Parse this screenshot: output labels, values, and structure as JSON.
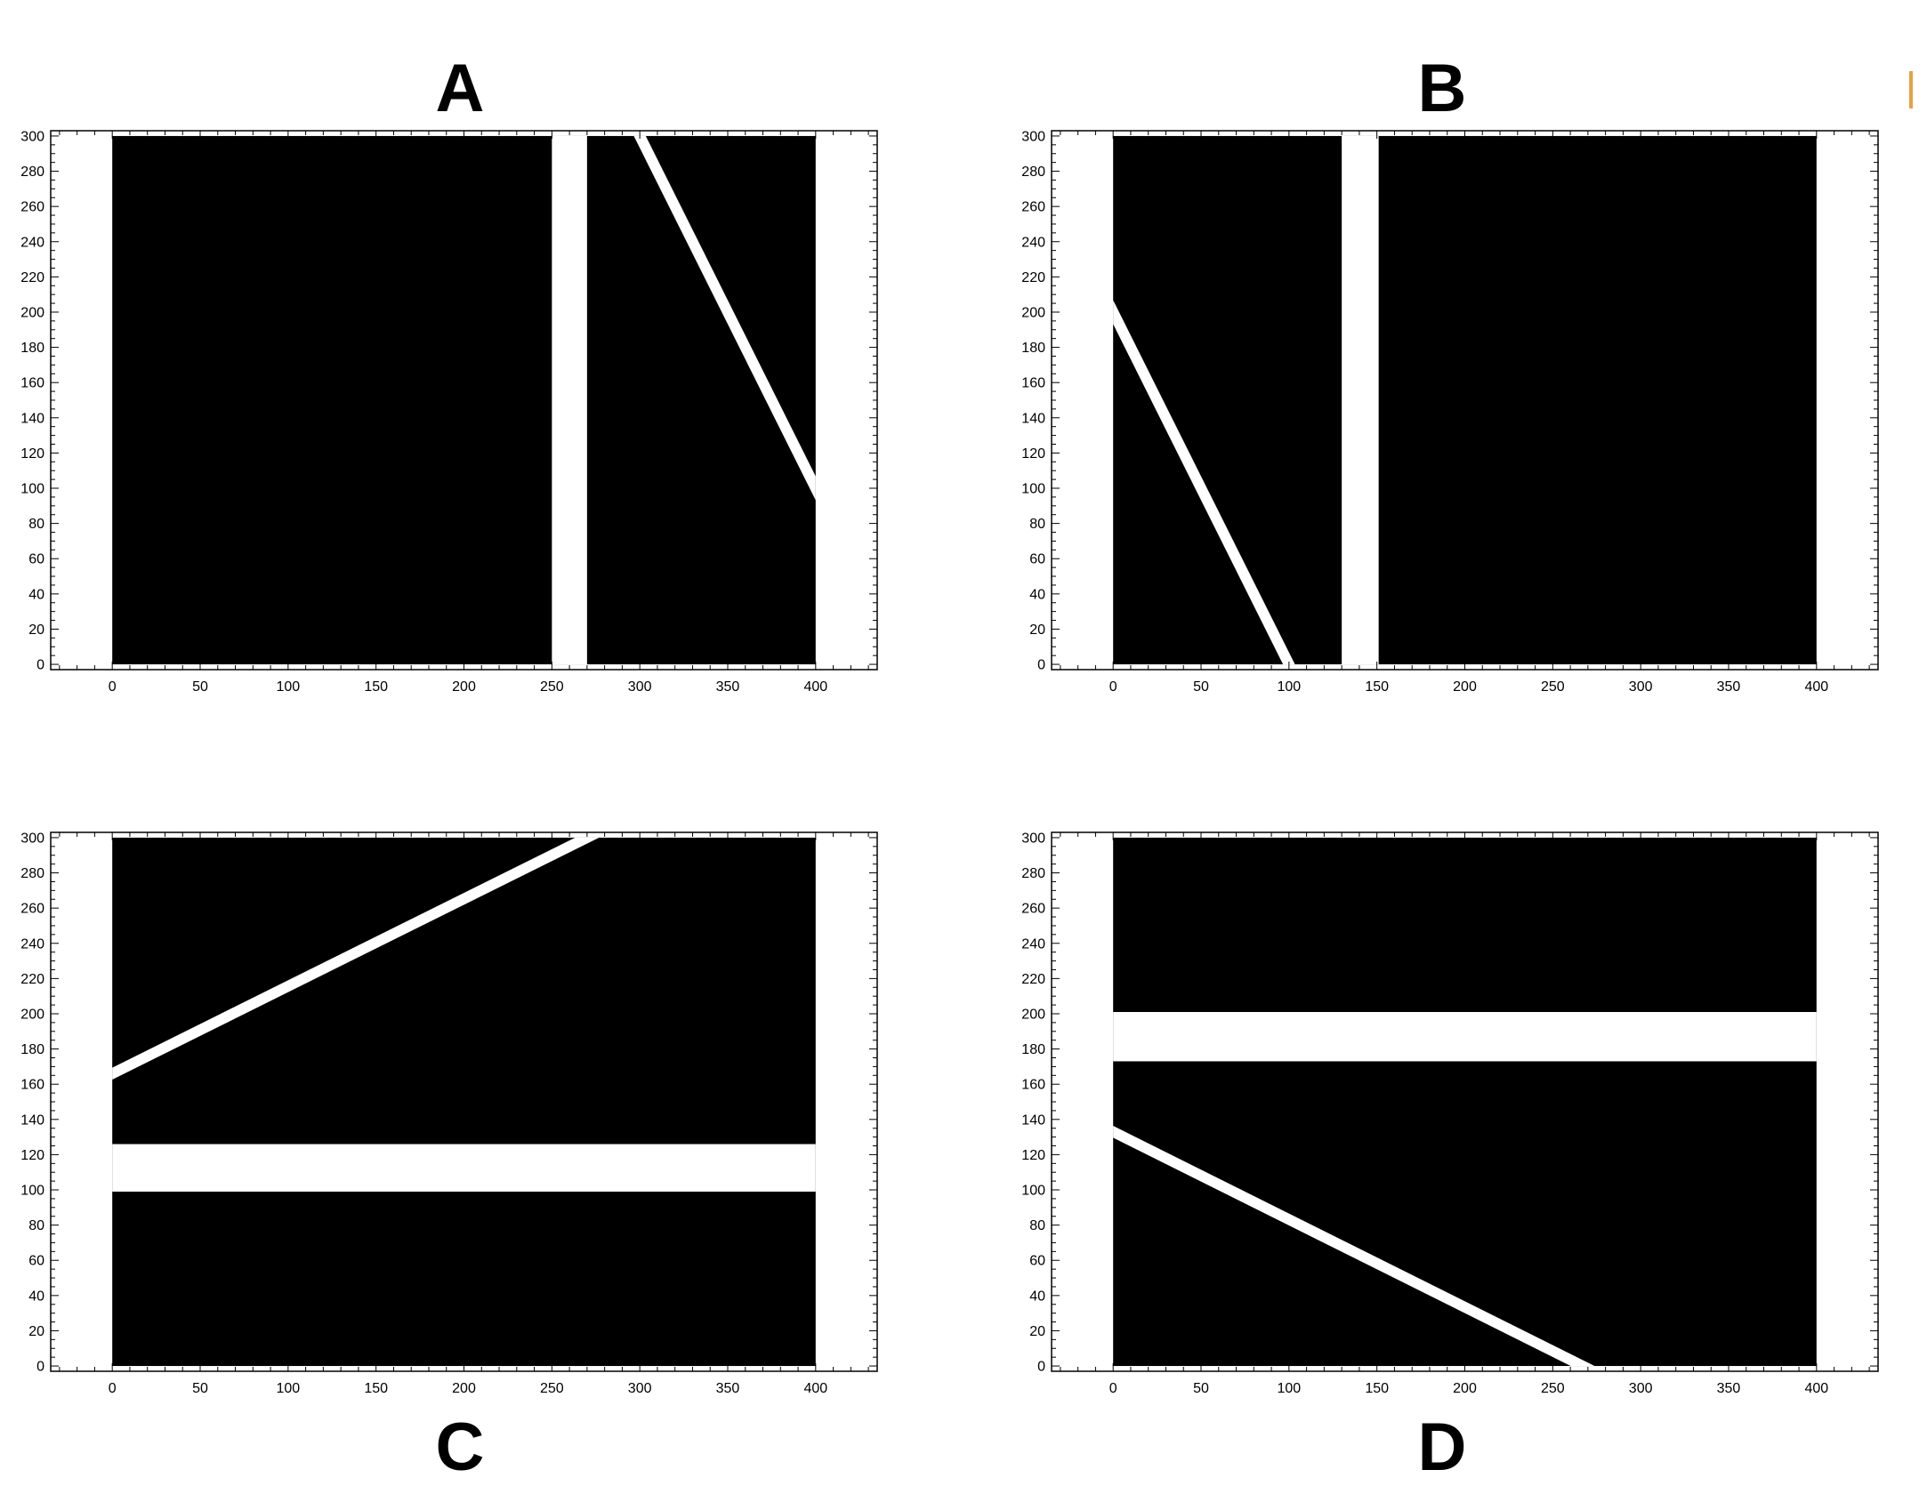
{
  "panels": [
    {
      "id": "A",
      "label": "A",
      "xlim": [
        -35,
        435
      ],
      "ylim": [
        -3,
        303
      ],
      "x_ticks": [
        0,
        50,
        100,
        150,
        200,
        250,
        300,
        350,
        400
      ],
      "y_ticks": [
        0,
        20,
        40,
        60,
        80,
        100,
        120,
        140,
        160,
        180,
        200,
        220,
        240,
        260,
        280,
        300
      ],
      "black_region": {
        "x": [
          0,
          400
        ],
        "y": [
          0,
          300
        ]
      },
      "white_gaps": [
        {
          "orientation": "vertical",
          "from": 250,
          "to": 270
        },
        {
          "orientation": "diagonal",
          "from": [
            300,
            300
          ],
          "to": [
            400,
            100
          ],
          "width": 6
        }
      ]
    },
    {
      "id": "B",
      "label": "B",
      "xlim": [
        -35,
        435
      ],
      "ylim": [
        -3,
        303
      ],
      "x_ticks": [
        0,
        50,
        100,
        150,
        200,
        250,
        300,
        350,
        400
      ],
      "y_ticks": [
        0,
        20,
        40,
        60,
        80,
        100,
        120,
        140,
        160,
        180,
        200,
        220,
        240,
        260,
        280,
        300
      ],
      "black_region": {
        "x": [
          0,
          400
        ],
        "y": [
          0,
          300
        ]
      },
      "white_gaps": [
        {
          "orientation": "vertical",
          "from": 130,
          "to": 151
        },
        {
          "orientation": "diagonal",
          "from": [
            0,
            200
          ],
          "to": [
            100,
            0
          ],
          "width": 6
        }
      ]
    },
    {
      "id": "C",
      "label": "C",
      "xlim": [
        -35,
        435
      ],
      "ylim": [
        -3,
        303
      ],
      "x_ticks": [
        0,
        50,
        100,
        150,
        200,
        250,
        300,
        350,
        400
      ],
      "y_ticks": [
        0,
        20,
        40,
        60,
        80,
        100,
        120,
        140,
        160,
        180,
        200,
        220,
        240,
        260,
        280,
        300
      ],
      "black_region": {
        "x": [
          0,
          400
        ],
        "y": [
          0,
          300
        ]
      },
      "white_gaps": [
        {
          "orientation": "horizontal",
          "from": 99,
          "to": 126
        },
        {
          "orientation": "diagonal",
          "from": [
            0,
            166
          ],
          "to": [
            270,
            300
          ],
          "width": 6
        }
      ]
    },
    {
      "id": "D",
      "label": "D",
      "xlim": [
        -35,
        435
      ],
      "ylim": [
        -3,
        303
      ],
      "x_ticks": [
        0,
        50,
        100,
        150,
        200,
        250,
        300,
        350,
        400
      ],
      "y_ticks": [
        0,
        20,
        40,
        60,
        80,
        100,
        120,
        140,
        160,
        180,
        200,
        220,
        240,
        260,
        280,
        300
      ],
      "black_region": {
        "x": [
          0,
          400
        ],
        "y": [
          0,
          300
        ]
      },
      "white_gaps": [
        {
          "orientation": "horizontal",
          "from": 173,
          "to": 201
        },
        {
          "orientation": "diagonal",
          "from": [
            0,
            133
          ],
          "to": [
            267,
            0
          ],
          "width": 6
        }
      ]
    }
  ],
  "colors": {
    "fill": "#000000",
    "gap": "#ffffff",
    "axis": "#000000",
    "accent": "#e8a040"
  }
}
